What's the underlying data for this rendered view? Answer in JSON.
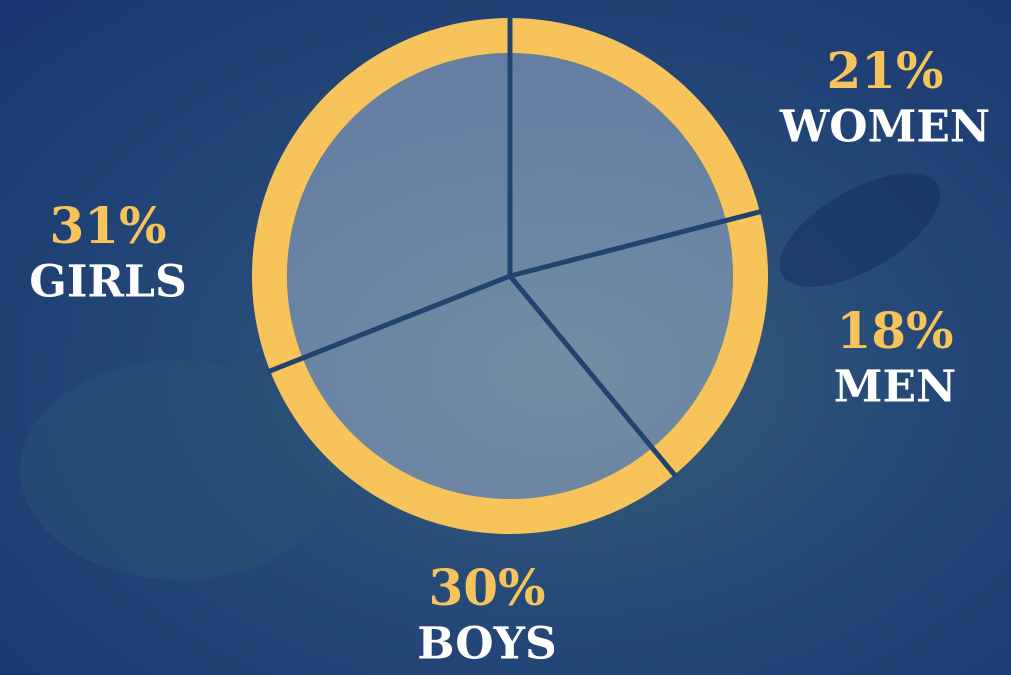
{
  "chart_data": {
    "type": "donut",
    "categories": [
      "WOMEN",
      "MEN",
      "BOYS",
      "GIRLS"
    ],
    "values": [
      21,
      18,
      30,
      31
    ],
    "value_labels": [
      "21%",
      "18%",
      "30%",
      "31%"
    ],
    "color": "#f6c45b"
  }
}
